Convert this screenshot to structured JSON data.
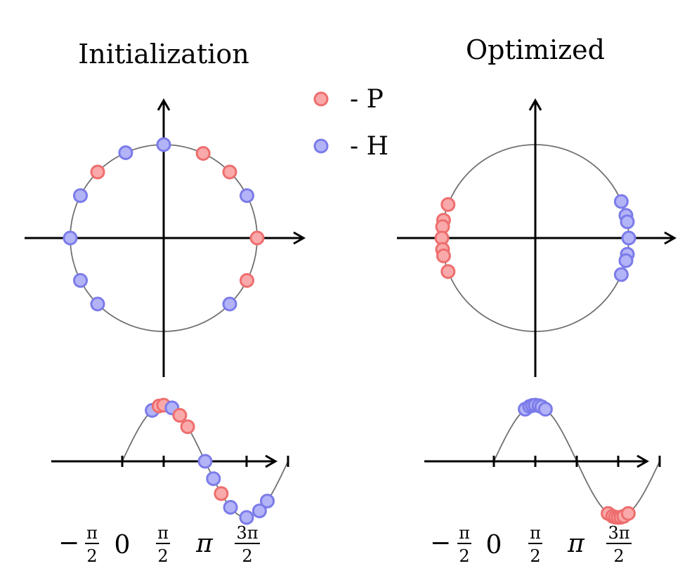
{
  "panels": [
    {
      "title": "Initialization",
      "circle_points": [
        {
          "angle_deg": 90,
          "class": "H"
        },
        {
          "angle_deg": 114,
          "class": "H"
        },
        {
          "angle_deg": 135,
          "class": "P"
        },
        {
          "angle_deg": 153,
          "class": "H"
        },
        {
          "angle_deg": 180,
          "class": "H"
        },
        {
          "angle_deg": 207,
          "class": "H"
        },
        {
          "angle_deg": 225,
          "class": "H"
        },
        {
          "angle_deg": 65,
          "class": "P"
        },
        {
          "angle_deg": 45,
          "class": "P"
        },
        {
          "angle_deg": 27,
          "class": "H"
        },
        {
          "angle_deg": 0,
          "class": "P"
        },
        {
          "angle_deg": -27,
          "class": "P"
        },
        {
          "angle_deg": -45,
          "class": "H"
        }
      ],
      "wave_points": [
        {
          "phase_deg": -25,
          "class": "H"
        },
        {
          "phase_deg": -10,
          "class": "P"
        },
        {
          "phase_deg": 0,
          "class": "P"
        },
        {
          "phase_deg": 18,
          "class": "H"
        },
        {
          "phase_deg": 35,
          "class": "P"
        },
        {
          "phase_deg": 52,
          "class": "P"
        },
        {
          "phase_deg": 90,
          "class": "H"
        },
        {
          "phase_deg": 108,
          "class": "H"
        },
        {
          "phase_deg": 125,
          "class": "P"
        },
        {
          "phase_deg": 145,
          "class": "H"
        },
        {
          "phase_deg": 180,
          "class": "H"
        },
        {
          "phase_deg": 208,
          "class": "H"
        },
        {
          "phase_deg": 225,
          "class": "H"
        }
      ]
    },
    {
      "title": "Optimized",
      "circle_points": [
        {
          "angle_deg": 159,
          "class": "P"
        },
        {
          "angle_deg": 169,
          "class": "P"
        },
        {
          "angle_deg": 173,
          "class": "P"
        },
        {
          "angle_deg": 180,
          "class": "P"
        },
        {
          "angle_deg": 187,
          "class": "P"
        },
        {
          "angle_deg": 191,
          "class": "P"
        },
        {
          "angle_deg": 201,
          "class": "P"
        },
        {
          "angle_deg": 23,
          "class": "H"
        },
        {
          "angle_deg": 14,
          "class": "H"
        },
        {
          "angle_deg": 10,
          "class": "H"
        },
        {
          "angle_deg": 0,
          "class": "H"
        },
        {
          "angle_deg": -10,
          "class": "H"
        },
        {
          "angle_deg": -14,
          "class": "H"
        },
        {
          "angle_deg": -23,
          "class": "H"
        }
      ],
      "wave_points": [
        {
          "phase_deg": -22,
          "class": "H"
        },
        {
          "phase_deg": -12,
          "class": "H"
        },
        {
          "phase_deg": -6,
          "class": "H"
        },
        {
          "phase_deg": 0,
          "class": "H"
        },
        {
          "phase_deg": 8,
          "class": "H"
        },
        {
          "phase_deg": 14,
          "class": "H"
        },
        {
          "phase_deg": 22,
          "class": "H"
        },
        {
          "phase_deg": 158,
          "class": "P"
        },
        {
          "phase_deg": 168,
          "class": "P"
        },
        {
          "phase_deg": 174,
          "class": "P"
        },
        {
          "phase_deg": 180,
          "class": "P"
        },
        {
          "phase_deg": 186,
          "class": "P"
        },
        {
          "phase_deg": 192,
          "class": "P"
        },
        {
          "phase_deg": 202,
          "class": "P"
        }
      ]
    }
  ],
  "legend": [
    {
      "label": "- P",
      "class": "P"
    },
    {
      "label": "- H",
      "class": "H"
    }
  ],
  "tick_labels": {
    "minus": "−",
    "pi": "π",
    "two": "2",
    "three_pi": "3π",
    "zero": "0"
  },
  "colors": {
    "P_fill": "#f9a9a9",
    "P_stroke": "#ee6e6e",
    "H_fill": "#b3b3f7",
    "H_stroke": "#7b7bea",
    "curve": "#707070",
    "axis": "#000000"
  }
}
